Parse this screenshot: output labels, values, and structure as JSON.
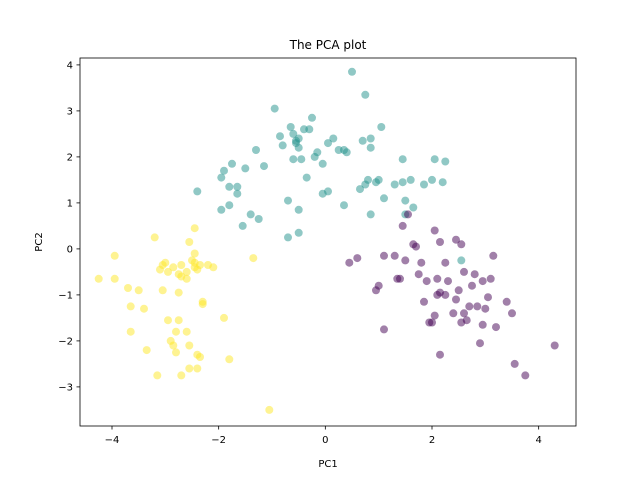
{
  "chart_data": {
    "type": "scatter",
    "title": "The PCA plot",
    "xlabel": "PC1",
    "ylabel": "PC2",
    "xlim": [
      -4.6,
      4.7
    ],
    "ylim": [
      -3.85,
      4.15
    ],
    "xticks": [
      -4,
      -2,
      0,
      2,
      4
    ],
    "yticks": [
      -3,
      -2,
      -1,
      0,
      1,
      2,
      3,
      4
    ],
    "grid": false,
    "legend": "none",
    "point_opacity": 0.5,
    "series": [
      {
        "color": "#fde725",
        "points": [
          [
            -4.25,
            -0.65
          ],
          [
            -3.95,
            -0.15
          ],
          [
            -3.95,
            -0.65
          ],
          [
            -3.7,
            -0.85
          ],
          [
            -3.65,
            -1.25
          ],
          [
            -3.65,
            -1.8
          ],
          [
            -3.5,
            -0.9
          ],
          [
            -3.4,
            -1.3
          ],
          [
            -3.35,
            -2.2
          ],
          [
            -3.2,
            0.25
          ],
          [
            -3.15,
            -2.75
          ],
          [
            -3.1,
            -0.45
          ],
          [
            -3.05,
            -0.35
          ],
          [
            -3.05,
            -0.9
          ],
          [
            -3.0,
            -0.3
          ],
          [
            -2.95,
            -0.5
          ],
          [
            -2.95,
            -1.55
          ],
          [
            -2.9,
            -2.0
          ],
          [
            -2.85,
            -0.4
          ],
          [
            -2.85,
            -2.1
          ],
          [
            -2.8,
            -1.8
          ],
          [
            -2.8,
            -2.25
          ],
          [
            -2.75,
            -0.55
          ],
          [
            -2.75,
            -0.95
          ],
          [
            -2.75,
            -1.55
          ],
          [
            -2.7,
            -0.35
          ],
          [
            -2.7,
            -0.6
          ],
          [
            -2.7,
            -2.75
          ],
          [
            -2.6,
            -0.5
          ],
          [
            -2.6,
            -0.65
          ],
          [
            -2.6,
            -1.8
          ],
          [
            -2.55,
            -2.1
          ],
          [
            -2.55,
            -2.6
          ],
          [
            -2.5,
            -0.25
          ],
          [
            -2.45,
            -0.1
          ],
          [
            -2.45,
            -0.4
          ],
          [
            -2.4,
            -0.45
          ],
          [
            -2.4,
            -2.3
          ],
          [
            -2.4,
            -2.6
          ],
          [
            -2.35,
            -0.35
          ],
          [
            -2.35,
            -2.35
          ],
          [
            -2.3,
            -1.15
          ],
          [
            -2.3,
            -1.2
          ],
          [
            -2.45,
            -0.3
          ],
          [
            -2.2,
            -0.35
          ],
          [
            -2.45,
            0.45
          ],
          [
            -2.55,
            0.15
          ],
          [
            -1.9,
            -1.5
          ],
          [
            -1.8,
            -2.4
          ],
          [
            -1.35,
            -0.2
          ],
          [
            -1.05,
            -3.5
          ],
          [
            -2.1,
            -0.4
          ]
        ]
      },
      {
        "color": "#21918c",
        "points": [
          [
            -2.4,
            1.25
          ],
          [
            -1.95,
            0.85
          ],
          [
            -1.95,
            1.55
          ],
          [
            -1.9,
            1.7
          ],
          [
            -1.8,
            0.95
          ],
          [
            -1.8,
            1.35
          ],
          [
            -1.75,
            1.85
          ],
          [
            -1.65,
            1.35
          ],
          [
            -1.65,
            1.2
          ],
          [
            -1.55,
            0.5
          ],
          [
            -1.5,
            1.75
          ],
          [
            -1.4,
            0.75
          ],
          [
            -1.3,
            2.15
          ],
          [
            -1.25,
            0.65
          ],
          [
            -1.15,
            1.8
          ],
          [
            -0.95,
            3.05
          ],
          [
            -0.85,
            2.45
          ],
          [
            -0.8,
            2.25
          ],
          [
            -0.7,
            0.25
          ],
          [
            -0.7,
            1.05
          ],
          [
            -0.65,
            2.65
          ],
          [
            -0.6,
            2.5
          ],
          [
            -0.6,
            1.95
          ],
          [
            -0.55,
            2.35
          ],
          [
            -0.55,
            2.3
          ],
          [
            -0.5,
            2.2
          ],
          [
            -0.5,
            2.4
          ],
          [
            -0.5,
            0.85
          ],
          [
            -0.5,
            0.35
          ],
          [
            -0.45,
            1.95
          ],
          [
            -0.4,
            2.6
          ],
          [
            -0.35,
            1.55
          ],
          [
            -0.25,
            2.85
          ],
          [
            -0.2,
            2.0
          ],
          [
            -0.15,
            2.1
          ],
          [
            -0.05,
            1.2
          ],
          [
            -0.05,
            1.85
          ],
          [
            0.05,
            2.3
          ],
          [
            0.05,
            1.25
          ],
          [
            0.15,
            2.4
          ],
          [
            0.35,
            0.95
          ],
          [
            0.35,
            2.15
          ],
          [
            0.4,
            2.1
          ],
          [
            0.5,
            3.85
          ],
          [
            0.65,
            1.3
          ],
          [
            0.7,
            2.35
          ],
          [
            0.75,
            3.35
          ],
          [
            0.75,
            1.4
          ],
          [
            0.8,
            1.5
          ],
          [
            0.85,
            0.75
          ],
          [
            0.85,
            2.2
          ],
          [
            0.95,
            1.45
          ],
          [
            1.0,
            1.5
          ],
          [
            1.05,
            2.65
          ],
          [
            1.1,
            1.1
          ],
          [
            1.3,
            1.4
          ],
          [
            1.45,
            1.95
          ],
          [
            1.45,
            1.45
          ],
          [
            1.5,
            0.75
          ],
          [
            1.6,
            1.5
          ],
          [
            1.65,
            0.9
          ],
          [
            1.85,
            1.4
          ],
          [
            2.0,
            1.5
          ],
          [
            2.05,
            1.95
          ],
          [
            2.2,
            1.45
          ],
          [
            2.25,
            1.9
          ],
          [
            2.55,
            -0.25
          ],
          [
            1.5,
            1.05
          ],
          [
            0.85,
            2.4
          ],
          [
            0.25,
            2.15
          ],
          [
            -0.3,
            2.6
          ]
        ]
      },
      {
        "color": "#440154",
        "points": [
          [
            0.45,
            -0.3
          ],
          [
            0.6,
            -0.2
          ],
          [
            0.95,
            -0.9
          ],
          [
            1.0,
            -0.8
          ],
          [
            1.1,
            -1.75
          ],
          [
            1.1,
            -0.15
          ],
          [
            1.3,
            -0.15
          ],
          [
            1.35,
            -0.65
          ],
          [
            1.4,
            -0.65
          ],
          [
            1.45,
            0.5
          ],
          [
            1.5,
            -0.25
          ],
          [
            1.55,
            0.75
          ],
          [
            1.65,
            0.1
          ],
          [
            1.7,
            0.05
          ],
          [
            1.75,
            -0.55
          ],
          [
            1.8,
            -0.3
          ],
          [
            1.9,
            -0.7
          ],
          [
            1.95,
            -1.6
          ],
          [
            2.0,
            -1.6
          ],
          [
            2.05,
            -1.45
          ],
          [
            2.05,
            0.4
          ],
          [
            2.1,
            -0.65
          ],
          [
            2.1,
            -1.0
          ],
          [
            2.15,
            -0.95
          ],
          [
            2.15,
            -2.3
          ],
          [
            2.15,
            0.15
          ],
          [
            2.25,
            -1.0
          ],
          [
            2.25,
            -0.3
          ],
          [
            2.3,
            -0.7
          ],
          [
            2.4,
            -1.4
          ],
          [
            2.45,
            -1.1
          ],
          [
            2.5,
            -0.9
          ],
          [
            2.55,
            -1.6
          ],
          [
            2.55,
            0.1
          ],
          [
            2.6,
            -1.4
          ],
          [
            2.65,
            -1.55
          ],
          [
            2.7,
            -1.25
          ],
          [
            2.75,
            -0.8
          ],
          [
            2.8,
            -0.55
          ],
          [
            2.85,
            -1.25
          ],
          [
            2.9,
            -2.05
          ],
          [
            2.95,
            -1.65
          ],
          [
            3.05,
            -1.05
          ],
          [
            3.1,
            -0.65
          ],
          [
            3.15,
            -0.15
          ],
          [
            3.2,
            -1.7
          ],
          [
            3.4,
            -1.15
          ],
          [
            3.5,
            -1.4
          ],
          [
            3.55,
            -2.5
          ],
          [
            3.75,
            -2.75
          ],
          [
            4.3,
            -2.1
          ],
          [
            2.45,
            0.2
          ],
          [
            2.6,
            -0.5
          ],
          [
            3.0,
            -1.3
          ],
          [
            2.95,
            -0.7
          ],
          [
            1.85,
            -1.15
          ]
        ]
      }
    ]
  }
}
